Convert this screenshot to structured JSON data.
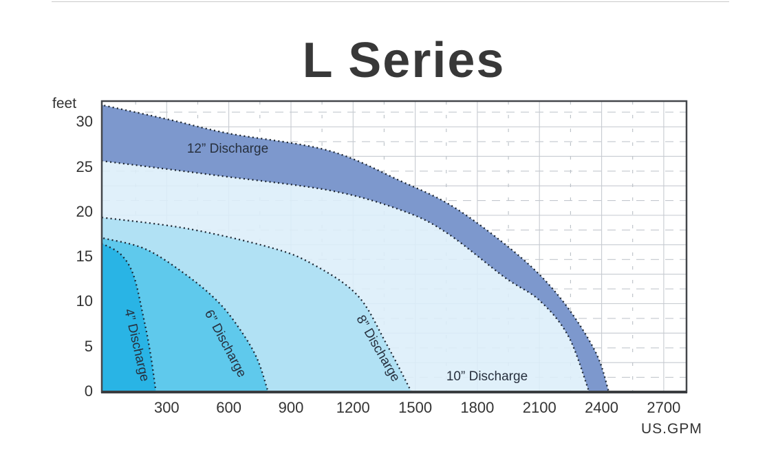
{
  "page": {
    "title": "L Series"
  },
  "axis": {
    "y_unit": "feet",
    "x_unit": "US.GPM"
  },
  "region_labels": {
    "r4": "4” Discharge",
    "r6": "6” Discharge",
    "r8": "8” Discharge",
    "r10": "10” Discharge",
    "r12": "12” Discharge"
  },
  "chart_data": {
    "type": "area",
    "title": "L Series",
    "xlabel": "US.GPM",
    "ylabel": "feet",
    "xlim": [
      0,
      2810
    ],
    "ylim": [
      0,
      32.4
    ],
    "x_ticks": [
      300,
      600,
      900,
      1200,
      1500,
      1800,
      2100,
      2400,
      2700
    ],
    "y_ticks": [
      30,
      25,
      20,
      15,
      10,
      5,
      0
    ],
    "grid": {
      "vertical_solid_every_gpm": 300,
      "vertical_dashed_every_gpm": 150,
      "horizontal_solid_every_ft": 3.28,
      "horizontal_dashed_every_ft": 1.64,
      "color": "#c6cad0"
    },
    "boundary_style": "dotted",
    "legend_position": "inline-region-labels",
    "series": [
      {
        "name": "4” Discharge",
        "fill": "#29b4e5",
        "boundary_ft_vs_gpm": [
          [
            0,
            16.4
          ],
          [
            80,
            15.3
          ],
          [
            140,
            13.0
          ],
          [
            187,
            8.4
          ],
          [
            220,
            4.5
          ],
          [
            248,
            0
          ]
        ]
      },
      {
        "name": "6” Discharge",
        "fill": "#5fc9ec",
        "boundary_ft_vs_gpm": [
          [
            0,
            17.1
          ],
          [
            200,
            15.9
          ],
          [
            403,
            12.9
          ],
          [
            550,
            10.0
          ],
          [
            650,
            7.1
          ],
          [
            735,
            3.8
          ],
          [
            790,
            0
          ]
        ]
      },
      {
        "name": "8” Discharge",
        "fill": "#b0e0f4",
        "boundary_ft_vs_gpm": [
          [
            0,
            19.4
          ],
          [
            400,
            18.2
          ],
          [
            800,
            16.1
          ],
          [
            1000,
            14.3
          ],
          [
            1220,
            10.8
          ],
          [
            1360,
            5.4
          ],
          [
            1482,
            0
          ]
        ]
      },
      {
        "name": "10” Discharge",
        "fill": "#dceef9",
        "boundary_ft_vs_gpm": [
          [
            0,
            25.7
          ],
          [
            550,
            24.1
          ],
          [
            1100,
            22.4
          ],
          [
            1450,
            20.1
          ],
          [
            1660,
            17.6
          ],
          [
            1930,
            12.8
          ],
          [
            2100,
            10.2
          ],
          [
            2240,
            6.2
          ],
          [
            2340,
            0
          ]
        ]
      },
      {
        "name": "12” Discharge",
        "fill": "#7d98cd",
        "band": true,
        "lower_boundary_same_as": "10” Discharge",
        "upper_boundary_ft_vs_gpm": [
          [
            0,
            31.9
          ],
          [
            320,
            30.3
          ],
          [
            600,
            28.8
          ],
          [
            1080,
            26.9
          ],
          [
            1430,
            23.5
          ],
          [
            1700,
            20.4
          ],
          [
            2015,
            14.9
          ],
          [
            2210,
            10.2
          ],
          [
            2370,
            4.5
          ],
          [
            2435,
            0
          ]
        ]
      }
    ]
  },
  "colors": {
    "band": "#7d98cd",
    "dots": "#1b2531",
    "border": "#43464a",
    "grid": "#c6cad0",
    "tick_text": "#333333",
    "title_text": "#383838"
  }
}
